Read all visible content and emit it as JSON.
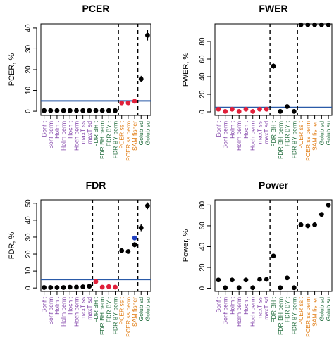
{
  "colors": {
    "purple": "#8040a8",
    "green": "#1f6b3a",
    "orange": "#e07a10",
    "red": "#e0203a",
    "blue_point": "#2040c0",
    "hline": "#2a5aa8",
    "black": "#000000"
  },
  "procedures": [
    {
      "label": "Bonf t",
      "color": "purple"
    },
    {
      "label": "Bonf perm",
      "color": "purple"
    },
    {
      "label": "Holm t",
      "color": "purple"
    },
    {
      "label": "Holm perm",
      "color": "purple"
    },
    {
      "label": "Hoch t",
      "color": "purple"
    },
    {
      "label": "Hoch perm",
      "color": "purple"
    },
    {
      "label": "maxT ss",
      "color": "purple"
    },
    {
      "label": "maxT sd",
      "color": "purple"
    },
    {
      "label": "FDR BH t",
      "color": "green"
    },
    {
      "label": "FDR BH perm",
      "color": "green"
    },
    {
      "label": "FDR BY t",
      "color": "green"
    },
    {
      "label": "FDR BY perm",
      "color": "green"
    },
    {
      "label": "PCER ss t",
      "color": "orange"
    },
    {
      "label": "PCER ss perm",
      "color": "orange"
    },
    {
      "label": "SAM fisher",
      "color": "orange"
    },
    {
      "label": "Golub sd",
      "color": "green"
    },
    {
      "label": "Golub su",
      "color": "green"
    }
  ],
  "chart_data": [
    {
      "type": "scatter",
      "title": "PCER",
      "ylabel": "PCER, %",
      "ylim": [
        -2,
        42
      ],
      "yticks": [
        0,
        10,
        20,
        30,
        40
      ],
      "hline": 5,
      "vlines_after": [
        11,
        14
      ],
      "values": [
        0.3,
        0.3,
        0.3,
        0.3,
        0.3,
        0.3,
        0.3,
        0.3,
        0.3,
        0.3,
        0.3,
        0.3,
        4.0,
        4.0,
        4.8,
        15.5,
        36.5
      ],
      "point_colors": [
        "black",
        "black",
        "black",
        "black",
        "black",
        "black",
        "black",
        "black",
        "black",
        "black",
        "black",
        "black",
        "red",
        "red",
        "red",
        "black",
        "black"
      ],
      "errors": [
        0,
        0,
        0,
        0,
        0,
        0,
        0,
        0,
        0,
        0,
        0,
        0,
        0,
        0,
        0,
        1.5,
        2.5
      ]
    },
    {
      "type": "scatter",
      "title": "FWER",
      "ylabel": "FWER, %",
      "ylim": [
        -4,
        100
      ],
      "yticks": [
        0,
        20,
        40,
        60,
        80
      ],
      "hline": 5,
      "vlines_after": [
        7,
        11
      ],
      "values": [
        3,
        0.5,
        3,
        0.5,
        3,
        0.5,
        3,
        3,
        52,
        0.5,
        6,
        0.5,
        99,
        99,
        99,
        99,
        99
      ],
      "point_colors": [
        "red",
        "red",
        "red",
        "red",
        "red",
        "red",
        "red",
        "red",
        "black",
        "black",
        "black",
        "black",
        "black",
        "black",
        "black",
        "black",
        "black"
      ],
      "errors": [
        0,
        0,
        0,
        0,
        0,
        0,
        0,
        0,
        3,
        0,
        0,
        0,
        0,
        0,
        0,
        0,
        0
      ]
    },
    {
      "type": "scatter",
      "title": "FDR",
      "ylabel": "FDR, %",
      "ylim": [
        -2,
        52
      ],
      "yticks": [
        0,
        10,
        20,
        30,
        40,
        50
      ],
      "hline": 5,
      "vlines_after": [
        7,
        11,
        14
      ],
      "values": [
        0.3,
        0.3,
        0.3,
        0.3,
        0.5,
        0.5,
        0.7,
        1.0,
        3.8,
        0.5,
        0.8,
        0.5,
        22,
        21.5,
        25.5,
        35.5,
        48.5
      ],
      "point_colors": [
        "black",
        "black",
        "black",
        "black",
        "black",
        "black",
        "black",
        "black",
        "red",
        "red",
        "red",
        "red",
        "black",
        "black",
        "black",
        "black",
        "black"
      ],
      "errors": [
        0,
        0,
        0,
        0,
        0,
        0,
        0,
        0,
        0,
        0,
        0,
        0,
        0,
        0,
        1.5,
        2,
        2
      ],
      "extra_points": [
        {
          "index": 14,
          "value": 29.5,
          "color": "blue_point"
        }
      ]
    },
    {
      "type": "scatter",
      "title": "Power",
      "ylabel": "Power, %",
      "ylim": [
        -3,
        85
      ],
      "yticks": [
        0,
        20,
        40,
        60,
        80
      ],
      "hline": null,
      "vlines_after": [
        7,
        11
      ],
      "values": [
        8,
        0.5,
        8,
        0.5,
        8,
        0.5,
        8.5,
        8.5,
        31,
        0.5,
        10,
        0.5,
        61,
        60,
        61,
        71,
        80
      ],
      "point_colors": [
        "black",
        "black",
        "black",
        "black",
        "black",
        "black",
        "black",
        "black",
        "black",
        "black",
        "black",
        "black",
        "black",
        "black",
        "black",
        "black",
        "black"
      ],
      "errors": [
        0,
        0,
        0,
        0,
        0,
        0,
        0,
        0,
        0,
        0,
        0,
        0,
        0,
        0,
        0,
        0,
        0
      ]
    }
  ]
}
